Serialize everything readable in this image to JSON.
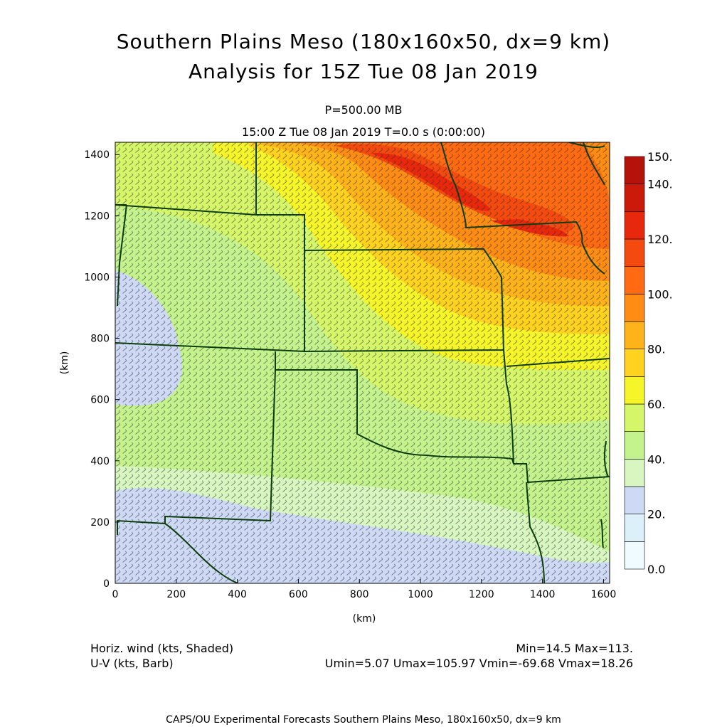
{
  "title": {
    "line1": "Southern Plains Meso (180x160x50, dx=9 km)",
    "line2": "Analysis for 15Z Tue 08 Jan 2019",
    "level": "P=500.00 MB",
    "time": "15:00 Z Tue 08 Jan 2019    T=0.0 s (0:00:00)"
  },
  "info": {
    "field1": "Horiz. wind (kts, Shaded)",
    "field2": "U-V (kts, Barb)",
    "minmax": "Min=14.5 Max=113.",
    "uvstats": "Umin=5.07 Umax=105.97 Vmin=-69.68 Vmax=18.26"
  },
  "footer": "CAPS/OU Experimental Forecasts  Southern Plains Meso, 180x160x50, dx=9 km",
  "chart_data": {
    "type": "heatmap",
    "xlabel": "(km)",
    "ylabel": "(km)",
    "xlim": [
      0,
      1620
    ],
    "ylim": [
      0,
      1440
    ],
    "xticks": [
      0,
      200,
      400,
      600,
      800,
      1000,
      1200,
      1400,
      1600
    ],
    "yticks": [
      0,
      200,
      400,
      600,
      800,
      1000,
      1200,
      1400
    ],
    "colorbar": {
      "labels": [
        "0.0",
        "20.",
        "40.",
        "60.",
        "80.",
        "100.",
        "120.",
        "140.",
        "150."
      ],
      "levels": [
        0,
        10,
        20,
        30,
        40,
        50,
        60,
        70,
        80,
        90,
        100,
        110,
        120,
        130,
        140,
        150
      ],
      "colors": [
        "#f0fbff",
        "#dcf0fa",
        "#cdd9f5",
        "#d8f6c0",
        "#c4f28c",
        "#d6f66a",
        "#f5f52a",
        "#ffd21f",
        "#ffb31a",
        "#ff8c14",
        "#ff6a12",
        "#f44a0f",
        "#e8280c",
        "#cc1a0a",
        "#b5120a"
      ]
    },
    "field_min": 14.5,
    "field_max": 113
  }
}
